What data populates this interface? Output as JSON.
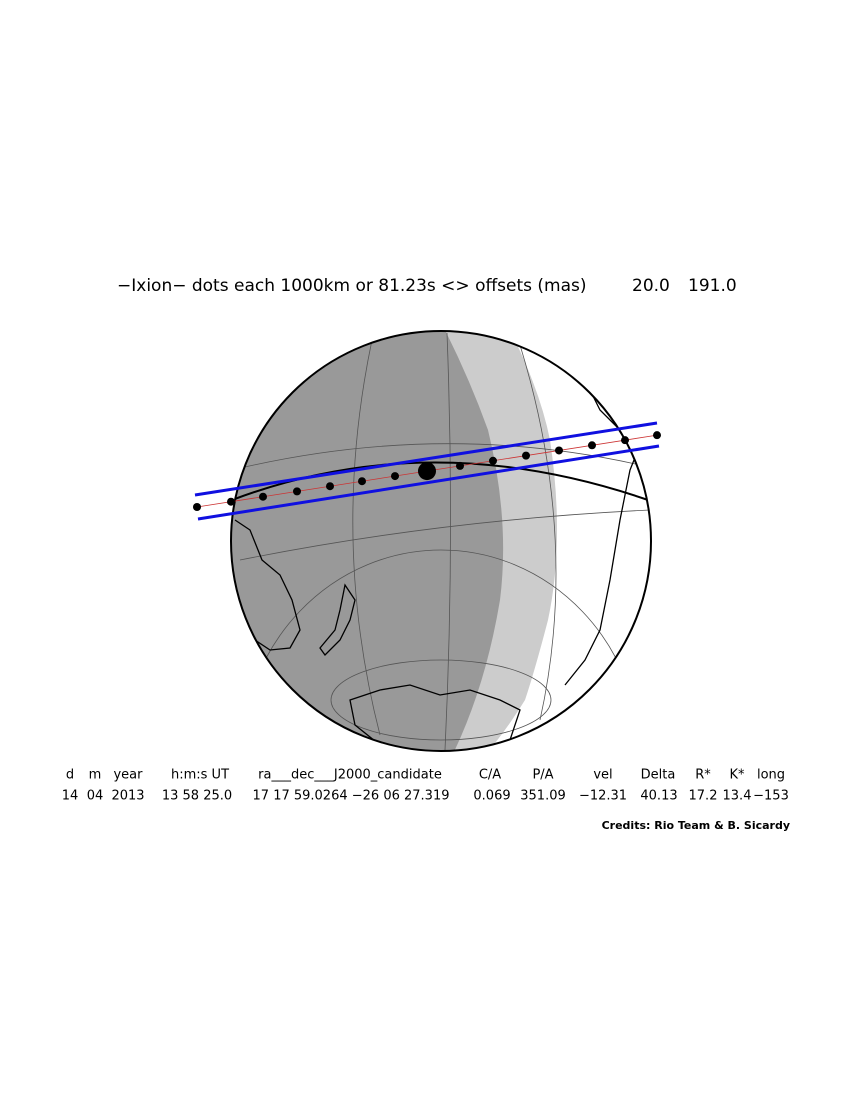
{
  "header": {
    "title": "−Ixion−  dots each 1000km or 81.23s <> offsets (mas)",
    "offsets": [
      "20.0",
      "191.0"
    ]
  },
  "table": {
    "headers": [
      "d",
      "m",
      "year",
      "h:m:s UT",
      "ra___dec___J2000_candidate",
      "C/A",
      "P/A",
      "vel",
      "Delta",
      "R*",
      "K*",
      "long"
    ],
    "rows": [
      [
        "14",
        "04",
        "2013",
        "13 58 25.0",
        "17 17 59.0264 −26 06 27.319",
        "0.069",
        "351.09",
        "−12.31",
        "40.13",
        "17.2",
        "13.4",
        "−153"
      ]
    ]
  },
  "credits": "Credits: Rio Team & B. Sicardy"
}
